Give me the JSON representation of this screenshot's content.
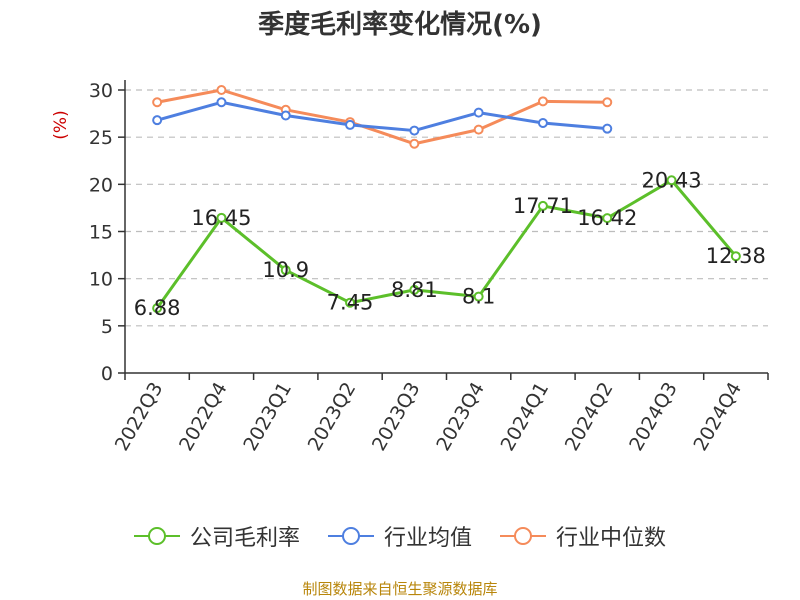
{
  "chart_data": {
    "type": "line",
    "title": "季度毛利率变化情况(%)",
    "ylabel": "(%)",
    "xlabel": "",
    "ylim": [
      0,
      30
    ],
    "yticks": [
      0,
      5,
      10,
      15,
      20,
      25,
      30
    ],
    "grid": true,
    "legend_position": "bottom",
    "categories": [
      "2022Q3",
      "2022Q4",
      "2023Q1",
      "2023Q2",
      "2023Q3",
      "2023Q4",
      "2024Q1",
      "2024Q2",
      "2024Q3",
      "2024Q4"
    ],
    "series": [
      {
        "name": "公司毛利率",
        "color": "#5cbf2a",
        "show_labels": true,
        "values": [
          6.88,
          16.45,
          10.9,
          7.45,
          8.81,
          8.1,
          17.71,
          16.42,
          20.43,
          12.38
        ]
      },
      {
        "name": "行业均值",
        "color": "#4e7fe0",
        "show_labels": false,
        "values": [
          26.8,
          28.7,
          27.3,
          26.3,
          25.7,
          27.6,
          26.5,
          25.9,
          null,
          null
        ]
      },
      {
        "name": "行业中位数",
        "color": "#f58b5a",
        "show_labels": false,
        "values": [
          28.7,
          30.0,
          27.9,
          26.6,
          24.3,
          25.8,
          28.8,
          28.7,
          null,
          null
        ]
      }
    ]
  },
  "source_text": "制图数据来自恒生聚源数据库"
}
